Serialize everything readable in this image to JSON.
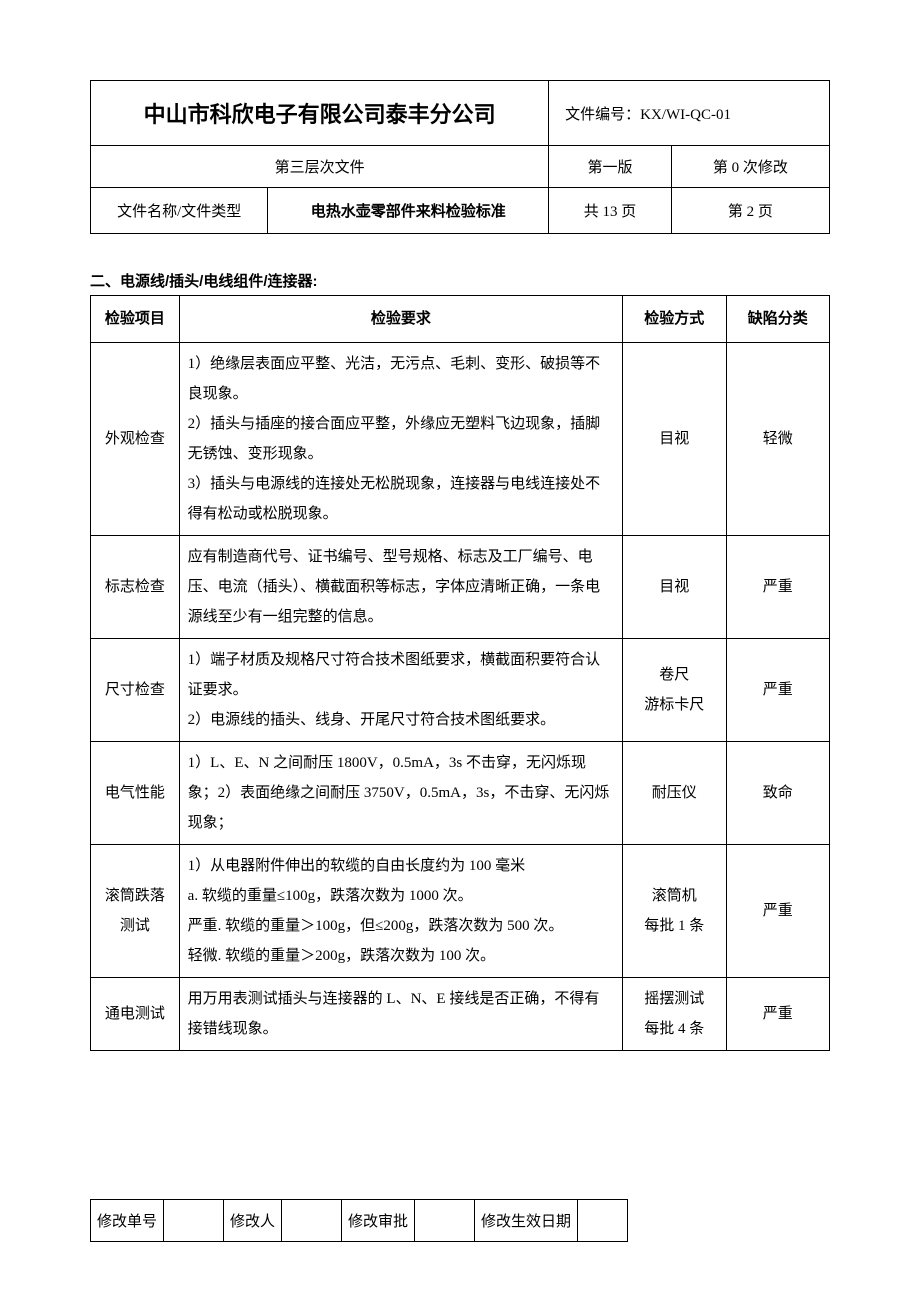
{
  "header": {
    "company": "中山市科欣电子有限公司泰丰分公司",
    "doc_number_label": "文件编号：KX/WI-QC-01",
    "level": "第三层次文件",
    "version": "第一版",
    "revision": "第 0 次修改",
    "filetype_label": "文件名称/文件类型",
    "filetype_value": "电热水壶零部件来料检验标准",
    "total_pages": "共 13 页",
    "current_page": "第 2 页"
  },
  "section_title": "二、电源线/插头/电线组件/连接器:",
  "table": {
    "columns": [
      "检验项目",
      "检验要求",
      "检验方式",
      "缺陷分类"
    ],
    "rows": [
      {
        "item": "外观检查",
        "requirement": "1）绝缘层表面应平整、光洁，无污点、毛刺、变形、破损等不良现象。\n2）插头与插座的接合面应平整，外缘应无塑料飞边现象，插脚无锈蚀、变形现象。\n3）插头与电源线的连接处无松脱现象，连接器与电线连接处不得有松动或松脱现象。",
        "method": "目视",
        "defect": "轻微"
      },
      {
        "item": "标志检查",
        "requirement": "应有制造商代号、证书编号、型号规格、标志及工厂编号、电压、电流（插头）、横截面积等标志，字体应清晰正确，一条电源线至少有一组完整的信息。",
        "method": "目视",
        "defect": "严重"
      },
      {
        "item": "尺寸检查",
        "requirement": "1）端子材质及规格尺寸符合技术图纸要求，横截面积要符合认证要求。\n2）电源线的插头、线身、开尾尺寸符合技术图纸要求。",
        "method": "卷尺\n游标卡尺",
        "defect": "严重"
      },
      {
        "item": "电气性能",
        "requirement": "1）L、E、N 之间耐压 1800V，0.5mA，3s 不击穿，无闪烁现象；2）表面绝缘之间耐压 3750V，0.5mA，3s，不击穿、无闪烁现象；",
        "method": "耐压仪",
        "defect": "致命"
      },
      {
        "item": "滚筒跌落\n测试",
        "requirement": "1）从电器附件伸出的软缆的自由长度约为 100 毫米\na. 软缆的重量≤100g，跌落次数为 1000 次。\n严重. 软缆的重量＞100g，但≤200g，跌落次数为 500 次。\n轻微. 软缆的重量＞200g，跌落次数为 100 次。",
        "method": "滚筒机\n每批 1 条",
        "defect": "严重"
      },
      {
        "item": "通电测试",
        "requirement": "用万用表测试插头与连接器的 L、N、E 接线是否正确，不得有接错线现象。",
        "method": "摇摆测试\n每批 4 条",
        "defect": "严重"
      }
    ]
  },
  "footer": {
    "mod_no": "修改单号",
    "mod_person": "修改人",
    "mod_approve": "修改审批",
    "mod_date": "修改生效日期"
  }
}
